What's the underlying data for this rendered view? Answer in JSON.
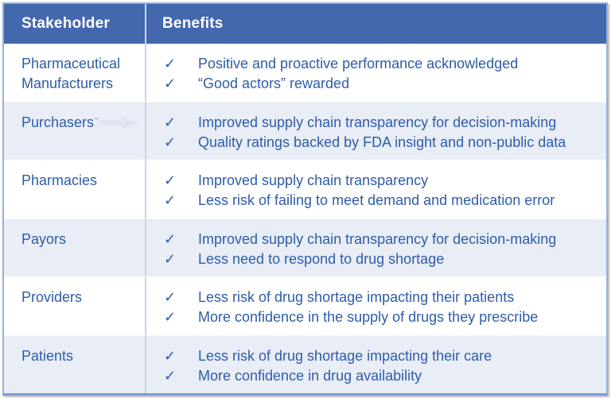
{
  "table": {
    "columns": [
      "Stakeholder",
      "Benefits"
    ],
    "rows": [
      {
        "stakeholder": "Pharmaceutical Manufacturers",
        "benefits": [
          "Positive and proactive performance acknowledged",
          "“Good actors” rewarded"
        ]
      },
      {
        "stakeholder": "Purchasers",
        "mark": "~",
        "has_arrow": true,
        "benefits": [
          "Improved supply chain transparency for decision-making",
          "Quality ratings backed by FDA insight and non-public data"
        ]
      },
      {
        "stakeholder": "Pharmacies",
        "benefits": [
          "Improved supply chain transparency",
          "Less risk of failing to meet demand and medication error"
        ]
      },
      {
        "stakeholder": "Payors",
        "benefits": [
          "Improved supply chain transparency for decision-making",
          "Less need to respond to drug shortage"
        ]
      },
      {
        "stakeholder": "Providers",
        "benefits": [
          "Less risk of drug shortage impacting their patients",
          "More confidence in the supply of drugs they prescribe"
        ]
      },
      {
        "stakeholder": "Patients",
        "benefits": [
          "Less risk of drug shortage impacting their care",
          "More confidence in drug availability"
        ]
      }
    ]
  },
  "icons": {
    "check": "✓",
    "arrow": "right-arrow"
  },
  "colors": {
    "header_bg": "#4468ad",
    "header_text": "#ffffff",
    "body_text": "#2e5ca9",
    "row_alt_bg": "#e9edf6",
    "row_bg": "#ffffff",
    "outer_border": "#93b1dc",
    "bottom_border": "#7c9cd2",
    "column_divider": "#c6d3ea",
    "arrow_fill": "#dfe5ef"
  }
}
